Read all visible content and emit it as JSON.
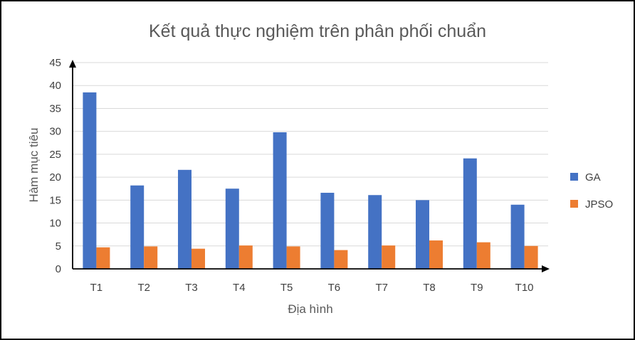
{
  "chart_data": {
    "type": "bar",
    "title": "Kết quả thực nghiệm trên phân phối chuẩn",
    "xlabel": "Địa hình",
    "ylabel": "Hàm mục tiêu",
    "categories": [
      "T1",
      "T2",
      "T3",
      "T4",
      "T5",
      "T6",
      "T7",
      "T8",
      "T9",
      "T10"
    ],
    "series": [
      {
        "name": "GA",
        "color": "#4472C4",
        "values": [
          38.5,
          18.2,
          21.6,
          17.5,
          29.8,
          16.6,
          16.1,
          15.0,
          24.1,
          14.0
        ]
      },
      {
        "name": "JPSO",
        "color": "#ED7D31",
        "values": [
          4.7,
          4.9,
          4.4,
          5.1,
          4.9,
          4.1,
          5.1,
          6.2,
          5.8,
          5.0
        ]
      }
    ],
    "ylim": [
      0,
      45
    ],
    "yticks": [
      0,
      5,
      10,
      15,
      20,
      25,
      30,
      35,
      40,
      45
    ],
    "grid": true,
    "legend": "right"
  }
}
